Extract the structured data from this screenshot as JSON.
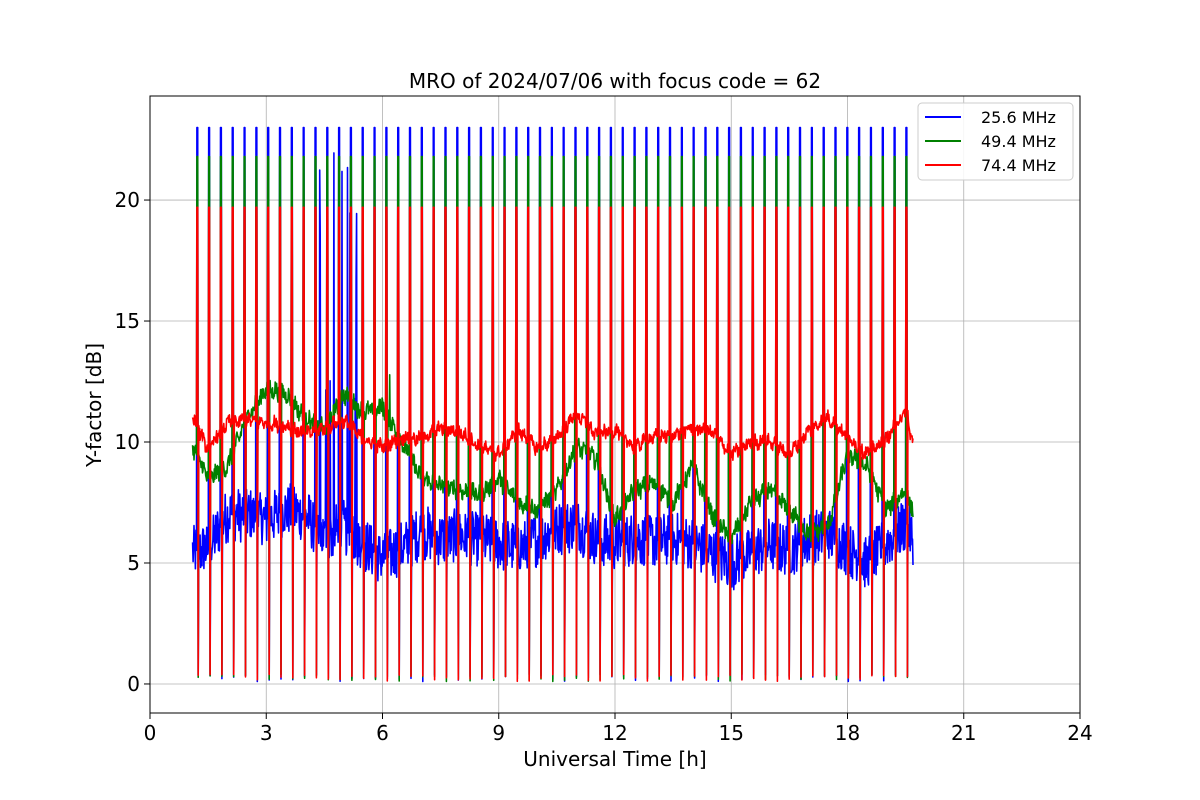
{
  "chart_data": {
    "type": "line",
    "title": "MRO of 2024/07/06 with focus code = 62",
    "xlabel": "Universal Time [h]",
    "ylabel": "Y-factor [dB]",
    "xlim": [
      0,
      24
    ],
    "ylim": [
      -1.2,
      24.3
    ],
    "xticks": [
      0,
      3,
      6,
      9,
      12,
      15,
      18,
      21,
      24
    ],
    "yticks": [
      0,
      5,
      10,
      15,
      20
    ],
    "grid": true,
    "legend_position": "top-right",
    "data_range_h": [
      1.1,
      19.7
    ],
    "calibration_spikes": {
      "first_h": 1.2,
      "spacing_h": 0.305,
      "count": 61,
      "peak_db": {
        "25.6 MHz": 23.0,
        "49.4 MHz": 21.8,
        "74.4 MHz": 19.7
      },
      "low_db": 0.1
    },
    "series": [
      {
        "name": "25.6 MHz",
        "color": "#0000ff",
        "x": [
          1.1,
          1.5,
          2.0,
          2.5,
          3.0,
          3.5,
          4.0,
          4.5,
          5.0,
          5.5,
          6.0,
          6.5,
          7.0,
          7.5,
          8.0,
          8.5,
          9.0,
          9.5,
          10.0,
          10.5,
          11.0,
          11.5,
          12.0,
          12.5,
          13.0,
          13.5,
          14.0,
          14.5,
          15.0,
          15.5,
          16.0,
          16.5,
          17.0,
          17.5,
          18.0,
          18.5,
          19.0,
          19.5,
          19.7
        ],
        "y": [
          5.5,
          5.6,
          7.0,
          7.0,
          6.8,
          7.2,
          7.0,
          6.0,
          6.5,
          5.8,
          5.2,
          5.6,
          6.3,
          6.0,
          6.1,
          6.0,
          5.8,
          5.6,
          6.0,
          6.4,
          6.6,
          6.0,
          5.8,
          6.0,
          5.9,
          6.0,
          5.8,
          5.4,
          5.0,
          5.4,
          5.8,
          5.5,
          6.0,
          6.2,
          5.6,
          5.0,
          5.8,
          6.6,
          6.0
        ]
      },
      {
        "name": "49.4 MHz",
        "color": "#008000",
        "x": [
          1.1,
          1.5,
          2.0,
          2.5,
          3.0,
          3.5,
          4.0,
          4.5,
          5.0,
          5.5,
          6.0,
          6.5,
          7.0,
          7.5,
          8.0,
          8.5,
          9.0,
          9.5,
          10.0,
          10.5,
          11.0,
          11.5,
          12.0,
          12.5,
          13.0,
          13.5,
          14.0,
          14.5,
          15.0,
          15.5,
          16.0,
          16.5,
          17.0,
          17.5,
          18.0,
          18.5,
          19.0,
          19.5,
          19.7
        ],
        "y": [
          9.8,
          8.5,
          9.0,
          11.0,
          12.2,
          12.0,
          11.0,
          10.5,
          12.0,
          11.2,
          11.5,
          10.0,
          8.5,
          8.2,
          8.0,
          7.8,
          8.5,
          7.5,
          7.2,
          8.0,
          9.8,
          9.3,
          6.8,
          8.0,
          8.3,
          7.5,
          9.0,
          7.0,
          6.0,
          7.5,
          8.0,
          7.2,
          6.2,
          6.5,
          9.5,
          9.0,
          7.2,
          8.0,
          7.1
        ]
      },
      {
        "name": "74.4 MHz",
        "color": "#ff0000",
        "x": [
          1.1,
          1.5,
          2.0,
          2.5,
          3.0,
          3.5,
          4.0,
          4.5,
          5.0,
          5.5,
          6.0,
          6.5,
          7.0,
          7.5,
          8.0,
          8.5,
          9.0,
          9.5,
          10.0,
          10.5,
          11.0,
          11.5,
          12.0,
          12.5,
          13.0,
          13.5,
          14.0,
          14.5,
          15.0,
          15.5,
          16.0,
          16.5,
          17.0,
          17.5,
          18.0,
          18.5,
          19.0,
          19.5,
          19.7
        ],
        "y": [
          11.0,
          9.7,
          10.8,
          10.9,
          10.8,
          10.7,
          10.3,
          10.6,
          10.9,
          10.1,
          9.8,
          10.2,
          10.1,
          10.6,
          10.4,
          9.8,
          9.5,
          10.5,
          9.7,
          10.2,
          11.2,
          10.3,
          10.5,
          9.8,
          10.2,
          10.3,
          10.6,
          10.4,
          9.5,
          10.0,
          10.0,
          9.5,
          10.5,
          11.0,
          10.2,
          9.5,
          10.1,
          11.3,
          9.8
        ]
      }
    ]
  }
}
